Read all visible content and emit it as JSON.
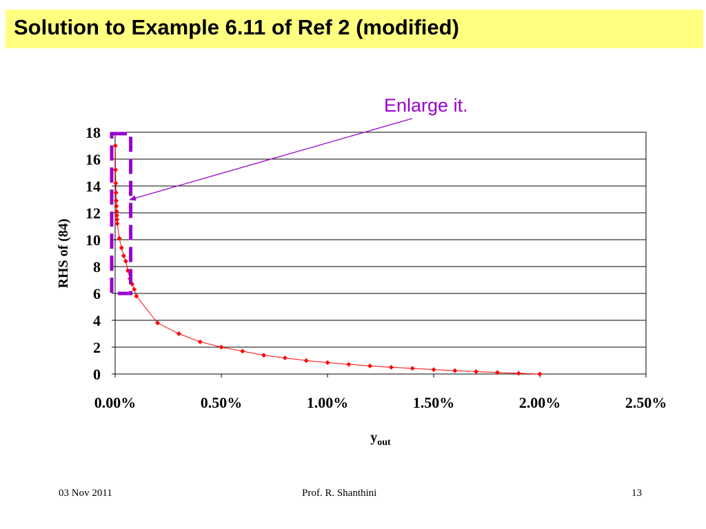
{
  "slide": {
    "title": "Solution to Example 6.11 of Ref 2 (modified)",
    "annotation": "Enlarge it.",
    "footer_date": "03 Nov 2011",
    "footer_author": "Prof. R. Shanthini",
    "footer_page": "13"
  },
  "colors": {
    "title_background": "#ffff80",
    "series": "#ff0000",
    "annotation": "#9900cc"
  },
  "chart_data": {
    "type": "scatter",
    "ylabel": "RHS of (84)",
    "xlabel_main": "y",
    "xlabel_sub": "out",
    "xlim": [
      0,
      0.025
    ],
    "ylim": [
      0,
      18
    ],
    "x_ticks": [
      0,
      0.005,
      0.01,
      0.015,
      0.02,
      0.025
    ],
    "x_tick_labels": [
      "0.00%",
      "0.50%",
      "1.00%",
      "1.50%",
      "2.00%",
      "2.50%"
    ],
    "y_ticks": [
      0,
      2,
      4,
      6,
      8,
      10,
      12,
      14,
      16,
      18
    ],
    "y_tick_labels": [
      "0",
      "2",
      "4",
      "6",
      "8",
      "10",
      "12",
      "14",
      "16",
      "18"
    ],
    "grid": "horizontal",
    "marker": "diamond",
    "line": true,
    "series": [
      {
        "x": [
          1e-05,
          2e-05,
          3e-05,
          4e-05,
          5e-05,
          6e-05,
          7e-05,
          8e-05,
          9e-05,
          0.0001,
          0.0002,
          0.0003,
          0.0004,
          0.0005,
          0.0006,
          0.0007,
          0.0008,
          0.0009,
          0.001,
          0.002,
          0.003,
          0.004,
          0.005,
          0.006,
          0.007,
          0.008,
          0.009,
          0.01,
          0.011,
          0.012,
          0.013,
          0.014,
          0.015,
          0.016,
          0.017,
          0.018,
          0.019,
          0.02
        ],
        "y": [
          17.0,
          15.2,
          14.2,
          13.5,
          12.9,
          12.5,
          12.1,
          11.8,
          11.5,
          11.2,
          10.1,
          9.4,
          8.8,
          8.4,
          7.7,
          7.1,
          6.7,
          6.3,
          5.8,
          3.8,
          3.0,
          2.4,
          2.0,
          1.7,
          1.4,
          1.2,
          1.0,
          0.85,
          0.72,
          0.6,
          0.5,
          0.42,
          0.33,
          0.25,
          0.18,
          0.11,
          0.05,
          0.0
        ]
      }
    ],
    "highlight_box": {
      "x_range": [
        0,
        0.0007
      ],
      "y_range": [
        6,
        18
      ]
    }
  }
}
